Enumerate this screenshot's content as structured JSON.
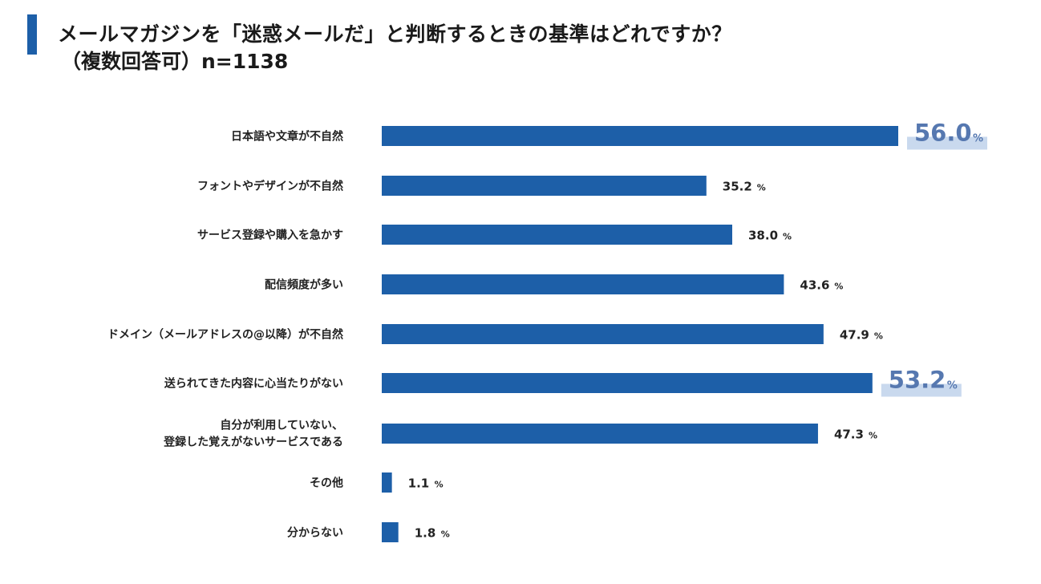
{
  "header": {
    "title": "メールマガジンを「迷惑メールだ」と判断するときの基準はどれですか？",
    "subtitle": "（複数回答可）n=1138"
  },
  "colors": {
    "accent": "#1d5fa8",
    "bar": "#1d5fa8",
    "highlight_text": "#5678b0",
    "highlight_bg": "#c9d9ee"
  },
  "chart_data": {
    "type": "bar",
    "orientation": "horizontal",
    "unit": "%",
    "categories": [
      [
        "日本語や文章が不自然"
      ],
      [
        "フォントやデザインが不自然"
      ],
      [
        "サービス登録や購入を急かす"
      ],
      [
        "配信頻度が多い"
      ],
      [
        "ドメイン（メールアドレスの@以降）が不自然"
      ],
      [
        "送られてきた内容に心当たりがない"
      ],
      [
        "自分が利用していない、",
        "登録した覚えがないサービスである"
      ],
      [
        "その他"
      ],
      [
        "分からない"
      ]
    ],
    "values": [
      56.0,
      35.2,
      38.0,
      43.6,
      47.9,
      53.2,
      47.3,
      1.1,
      1.8
    ],
    "value_labels": [
      "56.0",
      "35.2",
      "38.0",
      "43.6",
      "47.9",
      "53.2",
      "47.3",
      "1.1",
      "1.8"
    ],
    "highlighted": [
      true,
      false,
      false,
      false,
      false,
      true,
      false,
      false,
      false
    ],
    "xlim": [
      0,
      56.0
    ]
  }
}
